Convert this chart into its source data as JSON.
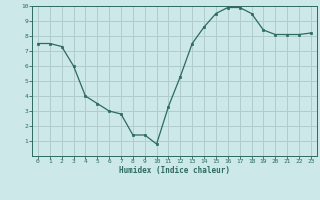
{
  "x": [
    0,
    1,
    2,
    3,
    4,
    5,
    6,
    7,
    8,
    9,
    10,
    11,
    12,
    13,
    14,
    15,
    16,
    17,
    18,
    19,
    20,
    21,
    22,
    23
  ],
  "y": [
    7.5,
    7.5,
    7.3,
    6.0,
    4.0,
    3.5,
    3.0,
    2.8,
    1.4,
    1.4,
    0.8,
    3.3,
    5.3,
    7.5,
    8.6,
    9.5,
    9.9,
    9.9,
    9.5,
    8.4,
    8.1,
    8.1,
    8.1,
    8.2
  ],
  "xlabel": "Humidex (Indice chaleur)",
  "ylim": [
    0,
    10
  ],
  "xlim": [
    -0.5,
    23.5
  ],
  "line_color": "#2d6b5e",
  "marker_color": "#2d6b5e",
  "bg_color": "#cce8e8",
  "grid_color": "#b0cccc",
  "axes_color": "#2d6b5e",
  "tick_label_color": "#2d6b5e",
  "xlabel_color": "#2d6b5e",
  "yticks": [
    1,
    2,
    3,
    4,
    5,
    6,
    7,
    8,
    9,
    10
  ],
  "xticks": [
    0,
    1,
    2,
    3,
    4,
    5,
    6,
    7,
    8,
    9,
    10,
    11,
    12,
    13,
    14,
    15,
    16,
    17,
    18,
    19,
    20,
    21,
    22,
    23
  ]
}
